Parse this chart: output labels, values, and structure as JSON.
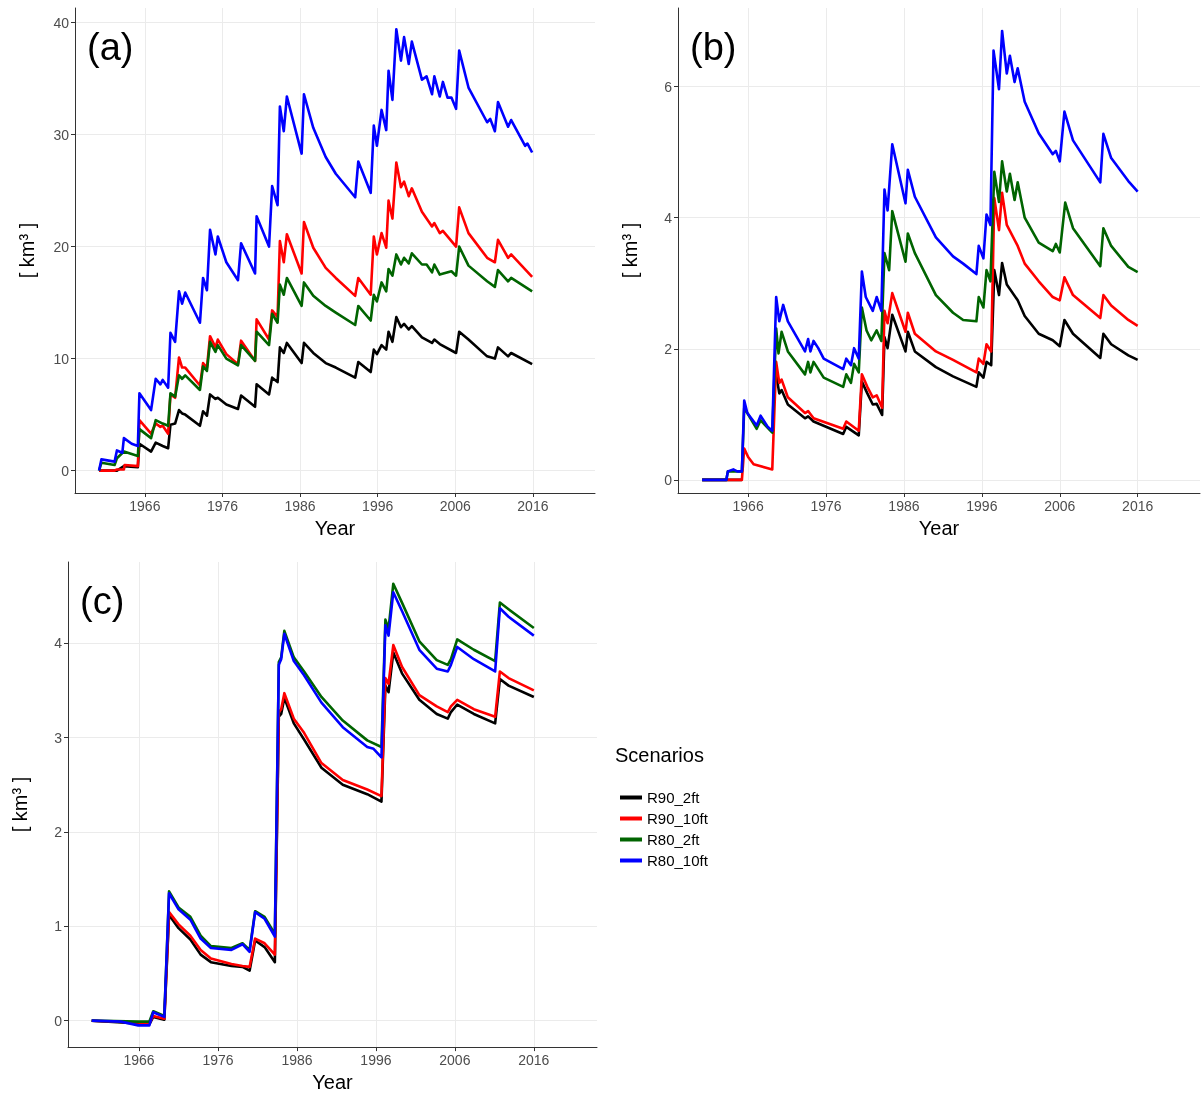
{
  "chart_data": [
    {
      "type": "line",
      "annotations": [
        "(a)"
      ],
      "xlabel": "Year",
      "ylabel": "[ km³ ]",
      "xlim": [
        1957,
        2024
      ],
      "xticks": [
        1966,
        1976,
        1986,
        1996,
        2006,
        2016
      ],
      "ylim": [
        -2,
        41.3
      ],
      "yticks": [
        0,
        10,
        20,
        30,
        40
      ],
      "grid": true,
      "legend": false,
      "series": [
        {
          "color": "#000000",
          "x": [
            1960.1,
            1962.4,
            1963.3,
            1965.1,
            1965.3,
            1966.8,
            1967.4,
            1968.3,
            1969.0,
            1969.3,
            1969.9,
            1970.4,
            1970.8,
            1971.2,
            1973.1,
            1973.5,
            1974.0,
            1974.4,
            1975.1,
            1975.4,
            1976.5,
            1978.0,
            1978.4,
            1980.2,
            1980.4,
            1982.0,
            1982.4,
            1983.1,
            1983.4,
            1983.9,
            1984.3,
            1986.2,
            1986.5,
            1987.7,
            1989.3,
            1990.6,
            1993.1,
            1993.5,
            1995.1,
            1995.5,
            1995.9,
            1996.5,
            1997.1,
            1997.4,
            1997.9,
            1998.4,
            1999.0,
            1999.4,
            2000.0,
            2000.4,
            2001.7,
            2003.0,
            2003.3,
            2004.0,
            2006.1,
            2006.5,
            2007.7,
            2010.1,
            2011.1,
            2011.5,
            2012.8,
            2013.2,
            2015.9
          ],
          "values": [
            0,
            0,
            0.4,
            0.3,
            2.4,
            1.7,
            2.5,
            2.2,
            2.0,
            4.1,
            4.2,
            5.4,
            5.1,
            5.0,
            4.0,
            5.3,
            4.9,
            6.8,
            6.4,
            6.5,
            5.9,
            5.5,
            6.7,
            5.7,
            7.7,
            6.8,
            8.3,
            7.9,
            11.0,
            10.5,
            11.4,
            9.6,
            11.4,
            10.5,
            9.6,
            9.2,
            8.3,
            9.7,
            8.8,
            10.8,
            10.4,
            11.2,
            10.8,
            12.4,
            11.5,
            13.7,
            12.8,
            13.1,
            12.6,
            12.9,
            11.9,
            11.4,
            11.7,
            11.3,
            10.5,
            12.4,
            11.7,
            10.2,
            10.0,
            11.0,
            10.2,
            10.5,
            9.5
          ]
        },
        {
          "color": "#ff0000",
          "x": [
            1960.1,
            1962.1,
            1962.4,
            1963.3,
            1963.4,
            1965.1,
            1965.3,
            1966.8,
            1967.4,
            1968.0,
            1968.3,
            1969.0,
            1969.3,
            1969.9,
            1970.4,
            1970.8,
            1971.2,
            1973.1,
            1973.5,
            1974.0,
            1974.4,
            1975.1,
            1975.4,
            1976.5,
            1978.0,
            1978.4,
            1980.2,
            1980.4,
            1982.0,
            1982.4,
            1983.1,
            1983.4,
            1983.9,
            1984.3,
            1986.2,
            1986.5,
            1987.7,
            1989.3,
            1990.6,
            1993.1,
            1993.5,
            1995.1,
            1995.5,
            1995.9,
            1996.5,
            1997.1,
            1997.4,
            1997.9,
            1998.4,
            1999.0,
            1999.4,
            2000.0,
            2000.4,
            2001.7,
            2003.0,
            2003.3,
            2004.0,
            2004.4,
            2006.1,
            2006.5,
            2007.7,
            2010.1,
            2011.1,
            2011.5,
            2012.8,
            2013.2,
            2015.9
          ],
          "values": [
            0,
            0,
            0.1,
            0.1,
            0.5,
            0.4,
            4.5,
            3.3,
            4.2,
            3.9,
            4.0,
            3.3,
            6.8,
            6.5,
            10.1,
            9.2,
            9.2,
            7.6,
            9.6,
            9.2,
            12.0,
            11.0,
            11.7,
            10.4,
            9.5,
            11.6,
            9.8,
            13.5,
            11.7,
            14.3,
            13.7,
            20.5,
            18.6,
            21.1,
            17.6,
            22.2,
            19.9,
            18.1,
            17.2,
            15.6,
            17.2,
            15.7,
            20.9,
            19.3,
            21.2,
            19.9,
            24.1,
            22.5,
            27.5,
            25.3,
            25.8,
            24.5,
            25.2,
            23.1,
            21.8,
            22.1,
            21.2,
            21.4,
            20.0,
            23.5,
            21.2,
            19.0,
            18.6,
            20.6,
            19.0,
            19.3,
            17.3
          ]
        },
        {
          "color": "#006400",
          "x": [
            1960.1,
            1960.4,
            1962.1,
            1962.4,
            1963.3,
            1965.1,
            1965.3,
            1966.8,
            1967.4,
            1968.3,
            1969.0,
            1969.3,
            1969.9,
            1970.4,
            1970.8,
            1971.2,
            1973.1,
            1973.5,
            1974.0,
            1974.4,
            1975.1,
            1975.4,
            1976.5,
            1978.0,
            1978.4,
            1980.2,
            1980.4,
            1982.0,
            1982.4,
            1983.1,
            1983.4,
            1983.9,
            1984.3,
            1986.2,
            1986.5,
            1987.7,
            1989.3,
            1990.6,
            1993.1,
            1993.5,
            1995.1,
            1995.5,
            1995.9,
            1996.5,
            1997.1,
            1997.4,
            1997.9,
            1998.4,
            1999.0,
            1999.4,
            2000.0,
            2000.4,
            2001.7,
            2002.3,
            2003.0,
            2003.3,
            2004.0,
            2005.5,
            2006.1,
            2006.5,
            2007.7,
            2010.1,
            2011.1,
            2011.5,
            2012.8,
            2013.2,
            2015.9
          ],
          "values": [
            0,
            0.7,
            0.5,
            1.1,
            1.7,
            1.3,
            3.7,
            2.9,
            4.5,
            4.2,
            4.0,
            6.9,
            6.6,
            8.5,
            8.2,
            8.5,
            7.2,
            9.3,
            8.9,
            11.5,
            10.6,
            11.2,
            10.0,
            9.4,
            11.2,
            9.8,
            12.4,
            11.2,
            14.0,
            13.2,
            16.6,
            15.7,
            17.2,
            14.7,
            16.8,
            15.6,
            14.7,
            14.1,
            13.0,
            14.7,
            13.4,
            15.7,
            15.1,
            16.8,
            16.0,
            18.0,
            17.4,
            19.3,
            18.4,
            19.0,
            18.5,
            19.4,
            18.4,
            18.4,
            17.7,
            18.4,
            17.5,
            17.8,
            17.4,
            20.0,
            18.3,
            16.9,
            16.4,
            17.9,
            16.9,
            17.2,
            16.0
          ]
        },
        {
          "color": "#0000ff",
          "x": [
            1960.1,
            1960.4,
            1962.1,
            1962.4,
            1963.1,
            1963.3,
            1964.3,
            1965.1,
            1965.3,
            1966.8,
            1967.4,
            1968.0,
            1968.3,
            1969.0,
            1969.3,
            1969.9,
            1970.4,
            1970.8,
            1971.2,
            1973.1,
            1973.5,
            1974.0,
            1974.4,
            1975.1,
            1975.4,
            1976.5,
            1978.0,
            1978.4,
            1980.2,
            1980.4,
            1982.0,
            1982.4,
            1983.1,
            1983.4,
            1983.9,
            1984.3,
            1986.2,
            1986.5,
            1987.7,
            1989.3,
            1990.6,
            1993.1,
            1993.5,
            1995.1,
            1995.5,
            1995.9,
            1996.5,
            1997.1,
            1997.4,
            1997.9,
            1998.4,
            1999.0,
            1999.4,
            2000.0,
            2000.4,
            2001.7,
            2002.3,
            2003.0,
            2003.3,
            2004.0,
            2004.4,
            2005.0,
            2005.5,
            2006.1,
            2006.5,
            2007.7,
            2010.1,
            2010.5,
            2011.1,
            2011.5,
            2012.8,
            2013.2,
            2015.0,
            2015.3,
            2015.9
          ],
          "values": [
            0,
            1.0,
            0.8,
            1.8,
            1.6,
            2.9,
            2.4,
            2.2,
            6.9,
            5.4,
            8.2,
            7.7,
            8.1,
            7.4,
            12.3,
            11.5,
            16.0,
            14.9,
            15.9,
            13.2,
            17.2,
            16.1,
            21.5,
            19.3,
            20.9,
            18.6,
            17.0,
            20.3,
            17.6,
            22.7,
            20.0,
            25.4,
            23.7,
            32.5,
            30.3,
            33.4,
            28.3,
            33.6,
            30.6,
            28.0,
            26.5,
            24.4,
            27.6,
            24.8,
            30.8,
            29.0,
            32.2,
            30.4,
            35.7,
            33.1,
            39.4,
            36.6,
            38.7,
            36.3,
            38.3,
            34.9,
            35.2,
            33.6,
            35.2,
            33.4,
            34.7,
            33.3,
            33.3,
            32.3,
            37.5,
            34.2,
            31.1,
            31.4,
            30.3,
            32.9,
            30.7,
            31.3,
            29.0,
            29.2,
            28.4
          ]
        }
      ]
    },
    {
      "type": "line",
      "annotations": [
        "(b)"
      ],
      "xlabel": "Year",
      "ylabel": "[ km³ ]",
      "xlim": [
        1957,
        2024
      ],
      "xticks": [
        1966,
        1976,
        1986,
        1996,
        2006,
        2016
      ],
      "ylim": [
        -0.2,
        7.2
      ],
      "yticks": [
        0,
        2,
        4,
        6
      ],
      "grid": true,
      "legend": false,
      "series": [
        {
          "color": "#000000",
          "x": [
            1960.1,
            1965.2,
            1965.5,
            1966.0,
            1966.7,
            1969.1,
            1969.6,
            1970.0,
            1970.3,
            1971.1,
            1973.3,
            1973.7,
            1974.4,
            1978.2,
            1978.6,
            1980.2,
            1980.6,
            1981.3,
            1982.0,
            1982.5,
            1983.2,
            1983.5,
            1983.9,
            1984.5,
            1986.2,
            1986.5,
            1987.4,
            1990.1,
            1992.3,
            1995.3,
            1995.6,
            1996.2,
            1996.6,
            1997.2,
            1997.6,
            1998.2,
            1998.6,
            1999.2,
            2000.6,
            2001.5,
            2003.3,
            2005.1,
            2006.0,
            2006.6,
            2007.7,
            2011.2,
            2011.6,
            2012.6,
            2014.8,
            2016.0
          ],
          "values": [
            0,
            0,
            null,
            null,
            null,
            null,
            1.61,
            1.32,
            1.37,
            1.15,
            0.94,
            0.97,
            0.89,
            0.7,
            0.81,
            0.68,
            1.5,
            1.32,
            1.15,
            1.16,
            0.99,
            2.18,
            2.01,
            2.52,
            1.96,
            2.26,
            1.96,
            1.72,
            1.58,
            1.42,
            1.64,
            1.56,
            1.8,
            1.75,
            3.2,
            2.82,
            3.31,
            2.98,
            2.74,
            2.5,
            2.23,
            2.13,
            2.04,
            2.44,
            2.23,
            1.86,
            2.23,
            2.07,
            1.9,
            1.83
          ]
        },
        {
          "color": "#ff0000",
          "x": [
            1960.1,
            1965.2,
            1965.5,
            1966.0,
            1966.7,
            1969.1,
            1969.6,
            1970.0,
            1970.3,
            1971.1,
            1973.3,
            1973.7,
            1974.4,
            1978.2,
            1978.6,
            1980.2,
            1980.6,
            1981.3,
            1982.0,
            1982.5,
            1983.2,
            1983.5,
            1983.9,
            1984.5,
            1986.2,
            1986.5,
            1987.4,
            1990.1,
            1992.3,
            1995.3,
            1995.6,
            1996.2,
            1996.6,
            1997.2,
            1997.6,
            1998.2,
            1998.6,
            1999.2,
            2000.6,
            2001.5,
            2003.3,
            2005.1,
            2006.0,
            2006.6,
            2007.7,
            2011.2,
            2011.6,
            2012.6,
            2014.8,
            2016.0
          ],
          "values": [
            0,
            0,
            0.48,
            0.35,
            0.24,
            0.16,
            1.8,
            1.48,
            1.53,
            1.26,
            1.02,
            1.05,
            0.94,
            0.78,
            0.89,
            0.75,
            1.61,
            1.42,
            1.26,
            1.29,
            1.1,
            2.58,
            2.39,
            2.85,
            2.26,
            2.55,
            2.23,
            1.96,
            1.83,
            1.64,
            1.85,
            1.77,
            2.07,
            1.96,
            4.3,
            3.81,
            4.38,
            3.89,
            3.57,
            3.3,
            3.03,
            2.79,
            2.74,
            3.09,
            2.82,
            2.47,
            2.82,
            2.66,
            2.44,
            2.35
          ]
        },
        {
          "color": "#006400",
          "x": [
            1960.1,
            1963.2,
            1963.4,
            1965.2,
            1965.5,
            1967.1,
            1967.6,
            1969.1,
            1969.6,
            1969.9,
            1970.3,
            1971.1,
            1973.3,
            1973.7,
            1974.0,
            1974.4,
            1975.7,
            1978.2,
            1978.6,
            1979.2,
            1979.6,
            1980.2,
            1980.6,
            1981.2,
            1981.8,
            1982.5,
            1983.1,
            1983.5,
            1984.1,
            1984.5,
            1986.2,
            1986.5,
            1987.4,
            1990.1,
            1992.3,
            1993.6,
            1995.3,
            1995.6,
            1996.2,
            1996.6,
            1997.1,
            1997.6,
            1998.2,
            1998.6,
            1999.2,
            1999.6,
            2000.2,
            2000.6,
            2001.5,
            2003.3,
            2005.1,
            2005.5,
            2006.0,
            2006.7,
            2007.7,
            2011.2,
            2011.6,
            2012.6,
            2014.8,
            2016.0
          ],
          "values": [
            0,
            0,
            0.13,
            0.13,
            1.1,
            0.78,
            0.91,
            0.72,
            2.31,
            1.93,
            2.26,
            1.96,
            1.61,
            1.8,
            1.64,
            1.8,
            1.56,
            1.42,
            1.61,
            1.48,
            1.77,
            1.64,
            2.63,
            2.28,
            2.13,
            2.28,
            2.12,
            3.46,
            3.2,
            4.1,
            3.33,
            3.76,
            3.46,
            2.82,
            2.55,
            2.44,
            2.42,
            2.79,
            2.63,
            3.2,
            3.03,
            4.7,
            4.24,
            4.86,
            4.4,
            4.67,
            4.27,
            4.54,
            4.0,
            3.62,
            3.49,
            3.6,
            3.47,
            4.23,
            3.84,
            3.26,
            3.84,
            3.57,
            3.25,
            3.17
          ]
        },
        {
          "color": "#0000ff",
          "x": [
            1960.1,
            1963.2,
            1963.4,
            1964.1,
            1964.6,
            1965.2,
            1965.5,
            1965.9,
            1967.1,
            1967.6,
            1968.5,
            1969.1,
            1969.6,
            1970.0,
            1970.5,
            1971.1,
            1973.3,
            1973.7,
            1974.0,
            1974.4,
            1975.0,
            1975.7,
            1978.2,
            1978.6,
            1979.2,
            1979.6,
            1980.2,
            1980.6,
            1981.1,
            1982.0,
            1982.5,
            1983.1,
            1983.5,
            1983.9,
            1984.5,
            1986.2,
            1986.5,
            1987.4,
            1990.1,
            1992.3,
            1993.6,
            1995.3,
            1995.6,
            1996.2,
            1996.6,
            1997.1,
            1997.5,
            1998.2,
            1998.6,
            1999.2,
            1999.6,
            2000.2,
            2000.6,
            2001.5,
            2003.3,
            2005.1,
            2005.5,
            2006.0,
            2006.6,
            2007.7,
            2011.2,
            2011.6,
            2012.6,
            2014.8,
            2016.0
          ],
          "values": [
            0,
            0,
            0.13,
            0.16,
            0.13,
            0.13,
            1.21,
            1.02,
            0.83,
            0.98,
            0.81,
            0.75,
            2.79,
            2.42,
            2.67,
            2.42,
            1.96,
            2.15,
            1.96,
            2.12,
            2.01,
            1.85,
            1.69,
            1.85,
            1.75,
            2.01,
            1.85,
            3.18,
            2.79,
            2.58,
            2.79,
            2.58,
            4.43,
            4.11,
            5.12,
            4.22,
            4.73,
            4.32,
            3.7,
            3.41,
            3.3,
            3.14,
            3.57,
            3.38,
            4.05,
            3.89,
            6.55,
            5.96,
            6.85,
            6.2,
            6.47,
            6.07,
            6.28,
            5.77,
            5.29,
            4.97,
            5.02,
            4.86,
            5.62,
            5.18,
            4.54,
            5.28,
            4.91,
            4.56,
            4.4
          ]
        }
      ]
    },
    {
      "type": "line",
      "annotations": [
        "(c)"
      ],
      "xlabel": "Year",
      "ylabel": "[ km³ ]",
      "legend_title": "Scenarios",
      "xlim": [
        1957,
        2024
      ],
      "xticks": [
        1966,
        1976,
        1986,
        1996,
        2006,
        2016
      ],
      "ylim": [
        -0.28,
        4.86
      ],
      "yticks": [
        0,
        1,
        2,
        3,
        4
      ],
      "grid": true,
      "legend": "right",
      "series": [
        {
          "name": "R90_2ft",
          "color": "#000000",
          "x": [
            1960.0,
            1965.9,
            1967.3,
            1967.8,
            1969.2,
            1969.8,
            1971.0,
            1972.5,
            1973.8,
            1975.1,
            1977.7,
            1979.1,
            1980.0,
            1980.7,
            1981.9,
            1983.2,
            1983.7,
            1984.0,
            1984.4,
            1985.6,
            1986.9,
            1989.1,
            1991.8,
            1994.9,
            1996.7,
            1997.2,
            1997.6,
            1998.2,
            1999.3,
            2001.5,
            2003.7,
            2005.1,
            2005.5,
            2006.3,
            2008.4,
            2011.1,
            2011.7,
            2012.8,
            2016.0
          ],
          "values": [
            0,
            -0.03,
            -0.04,
            0.04,
            0.01,
            1.12,
            0.98,
            0.86,
            0.7,
            0.62,
            0.58,
            0.57,
            0.53,
            0.85,
            0.78,
            0.62,
            3.22,
            3.25,
            3.42,
            3.15,
            2.98,
            2.68,
            2.5,
            2.4,
            2.32,
            3.55,
            3.48,
            3.9,
            3.68,
            3.4,
            3.25,
            3.2,
            3.27,
            3.35,
            3.25,
            3.15,
            3.62,
            3.55,
            3.43
          ]
        },
        {
          "name": "R90_10ft",
          "color": "#ff0000",
          "x": [
            1960.0,
            1965.9,
            1967.3,
            1967.8,
            1969.2,
            1969.8,
            1971.0,
            1972.5,
            1973.8,
            1975.1,
            1977.7,
            1979.1,
            1980.0,
            1980.7,
            1981.9,
            1983.2,
            1983.7,
            1984.0,
            1984.4,
            1985.6,
            1986.9,
            1989.1,
            1991.8,
            1994.9,
            1996.7,
            1997.2,
            1997.6,
            1998.2,
            1999.3,
            2001.5,
            2003.7,
            2005.1,
            2005.5,
            2006.3,
            2008.4,
            2011.1,
            2011.7,
            2012.8,
            2016.0
          ],
          "values": [
            0,
            -0.02,
            -0.03,
            0.05,
            0.02,
            1.15,
            1.02,
            0.9,
            0.75,
            0.66,
            0.6,
            0.58,
            0.57,
            0.87,
            0.82,
            0.7,
            3.27,
            3.3,
            3.47,
            3.2,
            3.05,
            2.73,
            2.55,
            2.45,
            2.38,
            3.63,
            3.57,
            3.98,
            3.75,
            3.45,
            3.33,
            3.27,
            3.33,
            3.4,
            3.3,
            3.22,
            3.7,
            3.63,
            3.5
          ]
        },
        {
          "name": "R80_2ft",
          "color": "#006400",
          "x": [
            1960.0,
            1965.9,
            1967.3,
            1967.8,
            1969.2,
            1969.8,
            1971.0,
            1972.5,
            1973.8,
            1975.1,
            1977.7,
            1979.1,
            1980.0,
            1980.7,
            1981.9,
            1983.2,
            1983.7,
            1984.0,
            1984.4,
            1985.6,
            1986.9,
            1989.1,
            1991.8,
            1994.9,
            1996.7,
            1997.2,
            1997.6,
            1998.2,
            1999.3,
            2001.5,
            2003.7,
            2005.1,
            2005.5,
            2006.3,
            2008.4,
            2011.1,
            2011.7,
            2012.8,
            2016.0
          ],
          "values": [
            0,
            -0.01,
            -0.01,
            0.1,
            0.05,
            1.37,
            1.2,
            1.1,
            0.9,
            0.79,
            0.77,
            0.82,
            0.75,
            1.16,
            1.1,
            0.92,
            3.8,
            3.85,
            4.13,
            3.85,
            3.7,
            3.43,
            3.18,
            2.97,
            2.9,
            4.25,
            4.15,
            4.63,
            4.43,
            4.02,
            3.82,
            3.77,
            3.83,
            4.04,
            3.93,
            3.81,
            4.43,
            4.36,
            4.16
          ]
        },
        {
          "name": "R80_10ft",
          "color": "#0000ff",
          "x": [
            1960.0,
            1963.7,
            1965.9,
            1967.3,
            1967.8,
            1969.2,
            1969.8,
            1971.0,
            1972.5,
            1973.8,
            1975.1,
            1977.7,
            1979.1,
            1980.0,
            1980.7,
            1981.9,
            1983.2,
            1983.7,
            1984.0,
            1984.4,
            1985.6,
            1986.9,
            1989.1,
            1991.8,
            1994.9,
            1995.7,
            1996.7,
            1997.2,
            1997.6,
            1998.2,
            1999.3,
            2001.5,
            2003.7,
            2005.1,
            2005.5,
            2006.3,
            2008.4,
            2011.1,
            2011.7,
            2012.8,
            2016.0
          ],
          "values": [
            0,
            -0.01,
            -0.05,
            -0.05,
            0.09,
            0.04,
            1.35,
            1.18,
            1.07,
            0.87,
            0.77,
            0.75,
            0.81,
            0.73,
            1.15,
            1.08,
            0.89,
            3.77,
            3.83,
            4.1,
            3.81,
            3.66,
            3.37,
            3.11,
            2.9,
            2.88,
            2.79,
            4.19,
            4.08,
            4.54,
            4.34,
            3.93,
            3.73,
            3.7,
            3.77,
            3.96,
            3.83,
            3.7,
            4.37,
            4.28,
            4.08
          ]
        }
      ]
    }
  ]
}
